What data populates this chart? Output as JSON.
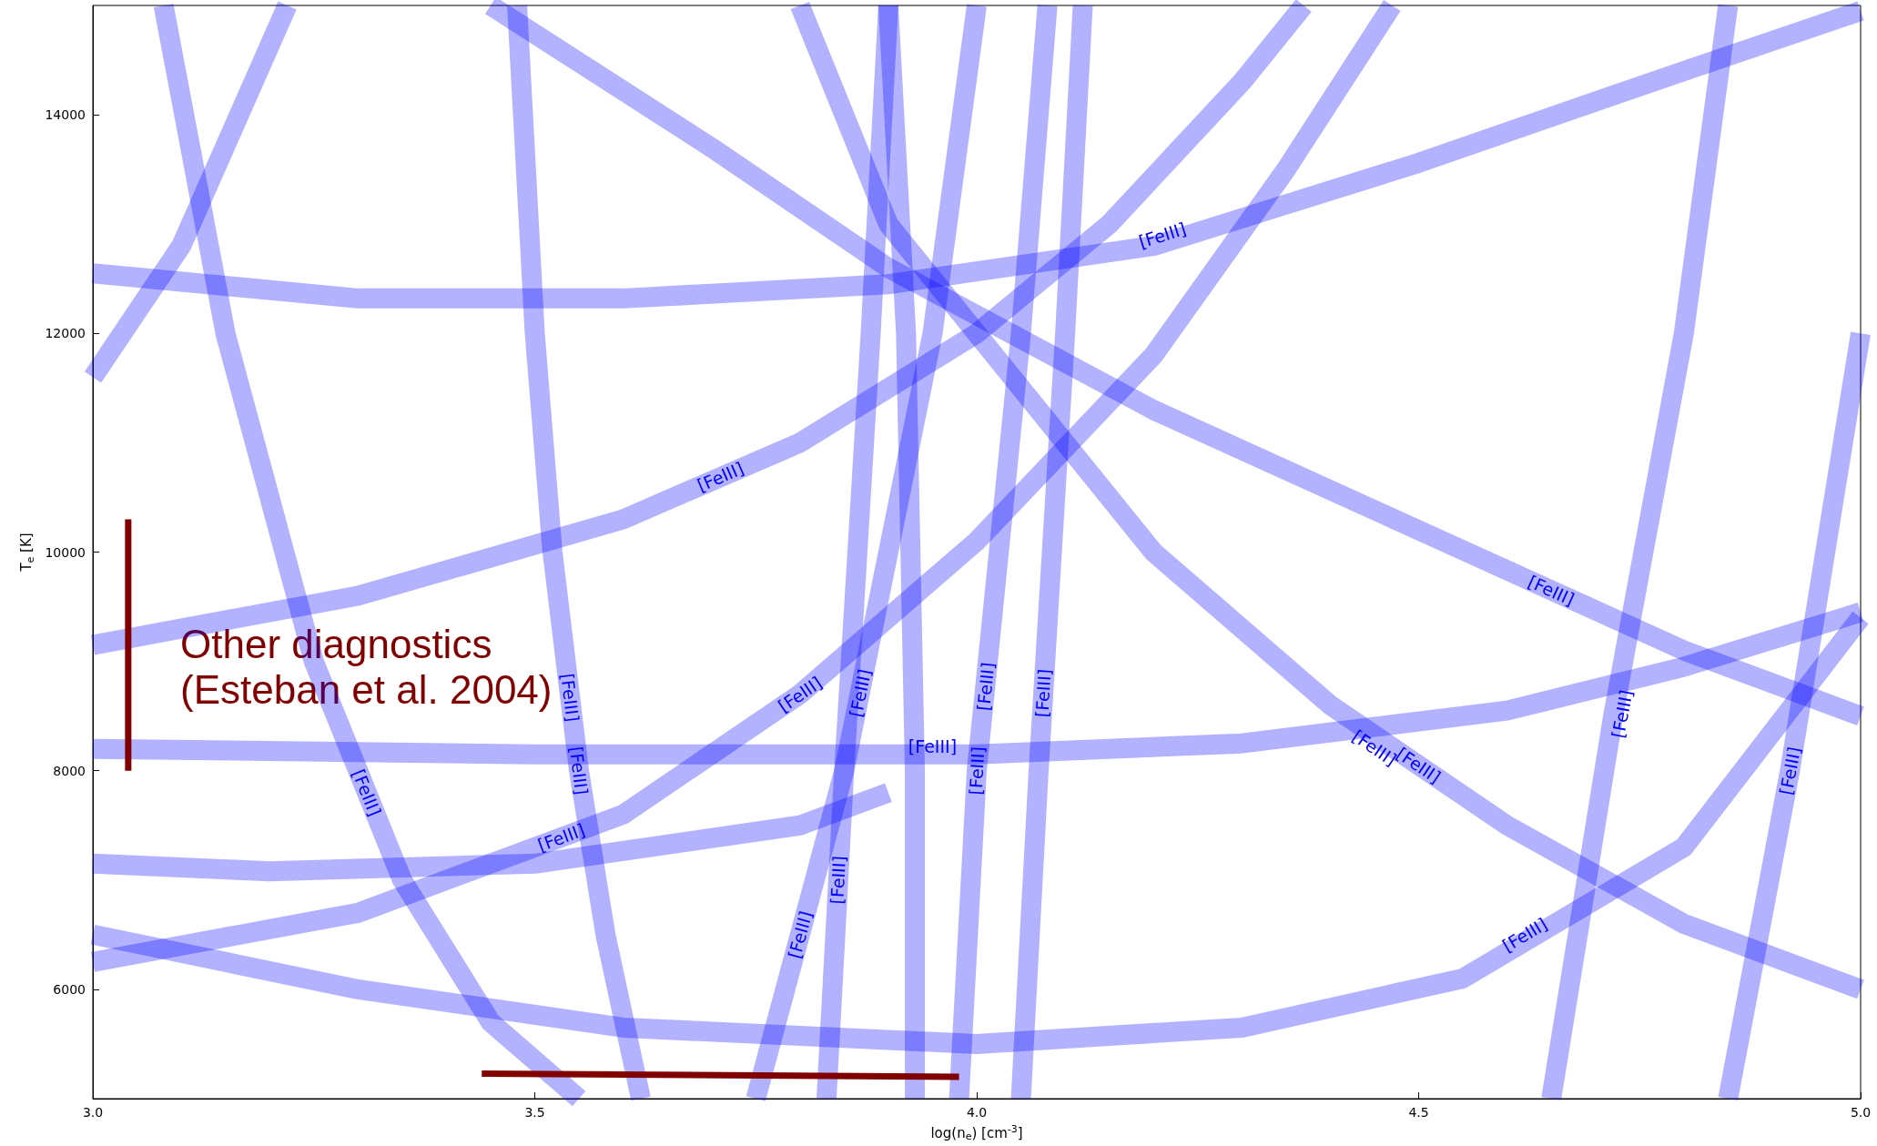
{
  "chart_data": {
    "type": "line",
    "xlabel": "log(n$_{e}$) [cm$^{-3}$]",
    "ylabel": "T$_{e}$ [K]",
    "xlim": [
      3.0,
      5.0
    ],
    "ylim": [
      5000,
      15000
    ],
    "xticks": [
      {
        "value": 3,
        "label": "3.0"
      },
      3.5,
      {
        "value": 4,
        "label": "4.0"
      },
      4.5,
      {
        "value": 5,
        "label": "5.0"
      }
    ],
    "yticks": [
      6000,
      8000,
      10000,
      12000,
      14000
    ],
    "grid": false,
    "marker": "none",
    "line_style": "solid",
    "series": [
      {
        "color": "#0000ff",
        "x": [
          3.0,
          3.3,
          3.6,
          3.9,
          4.2,
          4.5,
          4.8,
          5.0
        ],
        "values": [
          12550,
          12320,
          12320,
          12450,
          12800,
          13560,
          14400,
          14950
        ]
      },
      {
        "color": "#0000ff",
        "x": [
          3.0,
          3.5,
          4.0,
          4.3,
          4.6,
          4.8,
          5.0
        ],
        "values": [
          8200,
          8150,
          8150,
          8250,
          8550,
          8950,
          9450
        ]
      },
      {
        "color": "#0000ff",
        "x": [
          3.0,
          3.3,
          3.6,
          3.8,
          4.0,
          4.15,
          4.3,
          4.37
        ],
        "values": [
          9150,
          9600,
          10300,
          11000,
          12000,
          13000,
          14300,
          15000
        ]
      },
      {
        "color": "#0000ff",
        "x": [
          3.0,
          3.3,
          3.6,
          3.8,
          4.0,
          4.2,
          4.35,
          4.47
        ],
        "values": [
          6250,
          6700,
          7600,
          8700,
          10100,
          11800,
          13500,
          15000
        ]
      },
      {
        "color": "#0000ff",
        "x": [
          3.45,
          3.7,
          3.9,
          4.2,
          4.5,
          4.8,
          5.0
        ],
        "values": [
          15000,
          13700,
          12600,
          11300,
          10200,
          9100,
          8500
        ]
      },
      {
        "color": "#0000ff",
        "x": [
          3.8,
          3.9,
          4.0,
          4.2,
          4.4,
          4.6,
          4.8,
          5.0
        ],
        "values": [
          15000,
          13000,
          12000,
          10000,
          8600,
          7500,
          6600,
          6000
        ]
      },
      {
        "color": "#0000ff",
        "x": [
          3.0,
          3.3,
          3.6,
          4.0,
          4.3,
          4.55,
          4.8,
          5.0
        ],
        "values": [
          6500,
          6000,
          5650,
          5500,
          5650,
          6100,
          7300,
          9400
        ]
      },
      {
        "color": "#0000ff",
        "x": [
          3.0,
          3.2,
          3.5,
          3.8,
          3.9
        ],
        "values": [
          7150,
          7080,
          7150,
          7500,
          7800
        ]
      },
      {
        "color": "#0000ff",
        "x": [
          3.08,
          3.15,
          3.25,
          3.35,
          3.45,
          3.55
        ],
        "values": [
          15000,
          12000,
          9000,
          7000,
          5700,
          5000
        ]
      },
      {
        "color": "#0000ff",
        "x": [
          3.0,
          3.1,
          3.22
        ],
        "values": [
          11600,
          12800,
          15000
        ]
      },
      {
        "color": "#0000ff",
        "x": [
          3.48,
          3.5,
          3.52,
          3.55,
          3.58,
          3.62
        ],
        "values": [
          15000,
          12000,
          10000,
          8000,
          6500,
          5000
        ]
      },
      {
        "color": "#0000ff",
        "x": [
          3.9,
          3.92,
          3.93,
          3.93
        ],
        "values": [
          15000,
          12000,
          8000,
          5000
        ]
      },
      {
        "color": "#0000ff",
        "x": [
          4.05,
          4.07,
          4.1,
          4.12
        ],
        "values": [
          5000,
          8000,
          12000,
          15000
        ]
      },
      {
        "color": "#0000ff",
        "x": [
          3.75,
          3.85,
          3.95,
          4.0
        ],
        "values": [
          5000,
          8000,
          12000,
          15000
        ]
      },
      {
        "color": "#0000ff",
        "x": [
          3.83,
          3.85,
          3.88,
          3.9
        ],
        "values": [
          5000,
          8000,
          12000,
          15000
        ]
      },
      {
        "color": "#0000ff",
        "x": [
          3.98,
          4.0,
          4.05,
          4.08
        ],
        "values": [
          5000,
          8000,
          12000,
          15000
        ]
      },
      {
        "color": "#0000ff",
        "x": [
          4.65,
          4.72,
          4.8,
          4.85
        ],
        "values": [
          5000,
          8500,
          12000,
          15000
        ]
      },
      {
        "color": "#0000ff",
        "x": [
          4.85,
          4.92,
          4.98,
          5.0
        ],
        "values": [
          5000,
          8000,
          11000,
          12000
        ]
      },
      {
        "color": "#800000",
        "x": [
          3.04,
          3.04
        ],
        "values": [
          8000,
          10300
        ]
      },
      {
        "color": "#800000",
        "x": [
          3.44,
          3.98
        ],
        "values": [
          5230,
          5200
        ]
      }
    ],
    "annotations": [
      {
        "text": "[FeIII]",
        "x": 4.21,
        "y": 12900
      },
      {
        "text": "[FeIII]",
        "x": 3.71,
        "y": 10690
      },
      {
        "text": "[FeIII]",
        "x": 4.65,
        "y": 9650
      },
      {
        "text": "[FeIII]",
        "x": 4.45,
        "y": 8210
      },
      {
        "text": "[FeIII]",
        "x": 4.5,
        "y": 8050
      },
      {
        "text": "[FeIII]",
        "x": 4.62,
        "y": 6500
      },
      {
        "text": "[FeIII]",
        "x": 4.73,
        "y": 8520
      },
      {
        "text": "[FeIII]",
        "x": 4.92,
        "y": 8000
      },
      {
        "text": "[FeIII]",
        "x": 3.31,
        "y": 7800
      },
      {
        "text": "[FeIII]",
        "x": 3.53,
        "y": 7390
      },
      {
        "text": "[FeIII]",
        "x": 3.55,
        "y": 8000
      },
      {
        "text": "[FeIII]",
        "x": 3.54,
        "y": 8670
      },
      {
        "text": "[FeIII]",
        "x": 3.8,
        "y": 6500
      },
      {
        "text": "[FeIII]",
        "x": 3.843,
        "y": 7000
      },
      {
        "text": "[FeIII]",
        "x": 3.8,
        "y": 8700
      },
      {
        "text": "[FeIII]",
        "x": 3.868,
        "y": 8710
      },
      {
        "text": "[FeIII]",
        "x": 3.95,
        "y": 8220
      },
      {
        "text": "[FeIII]",
        "x": 4.01,
        "y": 8770
      },
      {
        "text": "[FeIII]",
        "x": 4.075,
        "y": 8710
      },
      {
        "text": "[FeIII]",
        "x": 4.0,
        "y": 8000
      },
      "Other diagnostics\n(Esteban et al. 2004)"
    ]
  }
}
